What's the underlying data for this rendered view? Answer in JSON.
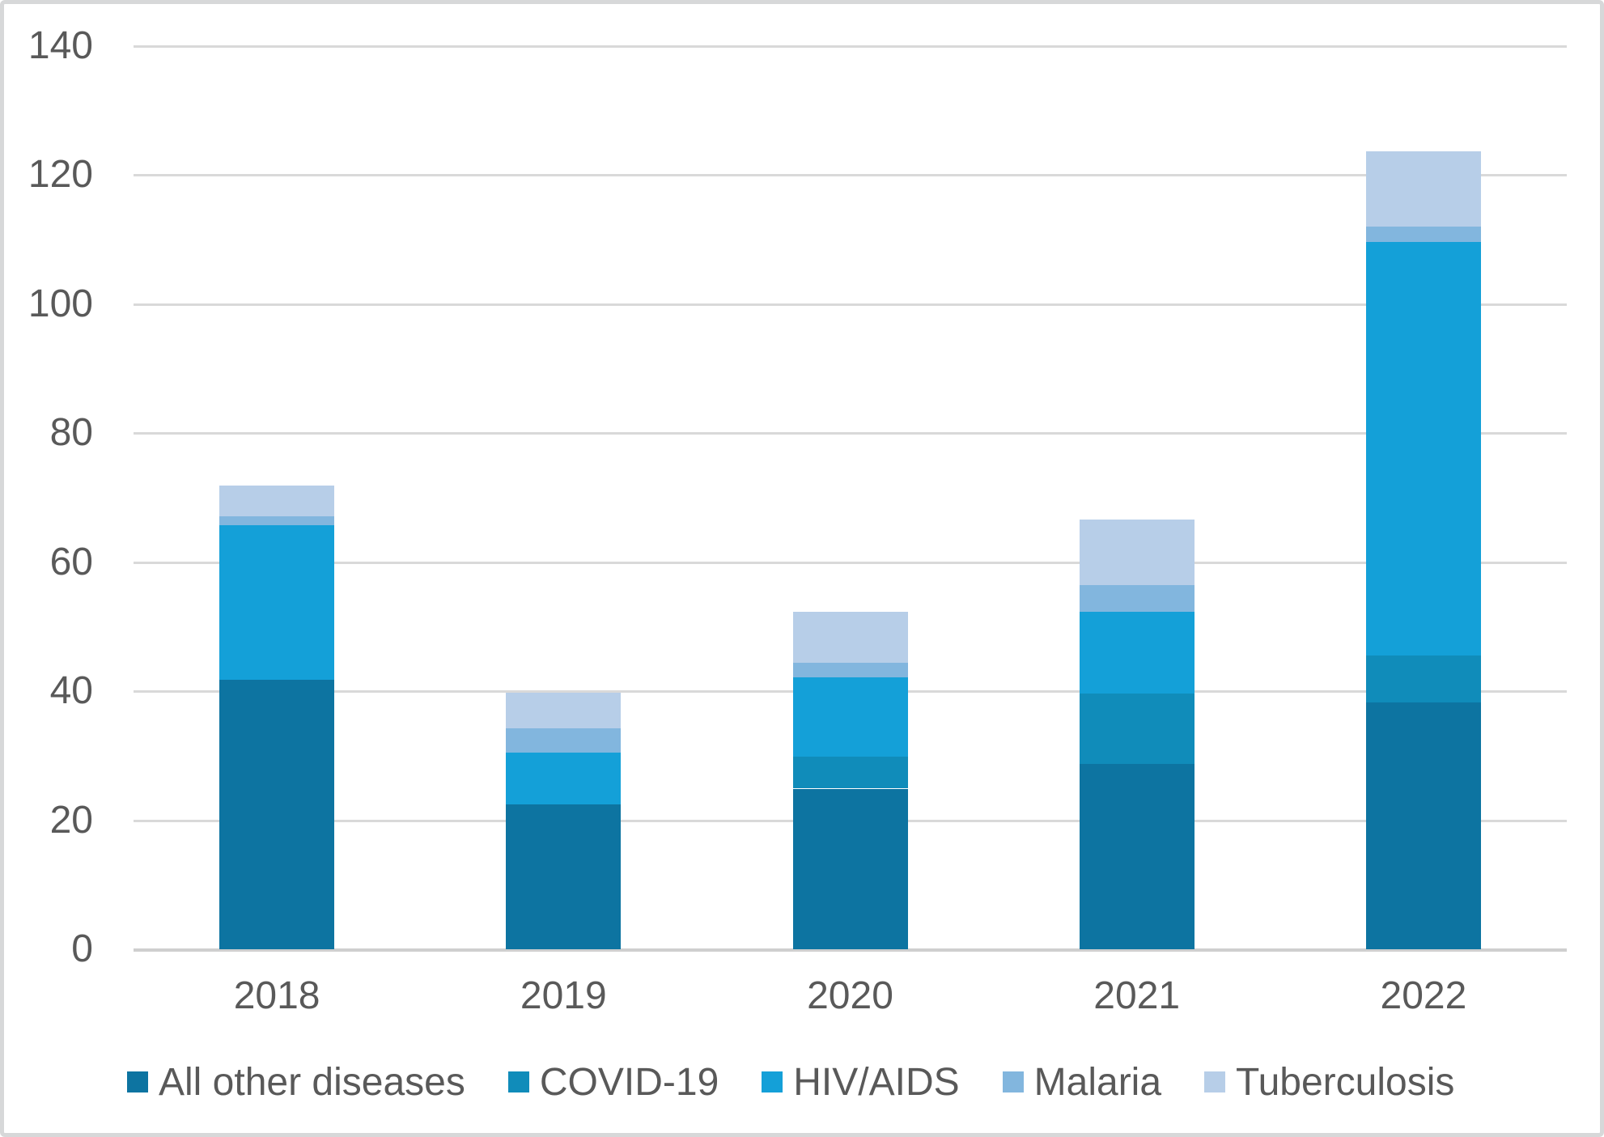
{
  "chart_data": {
    "type": "bar",
    "stacked": true,
    "title": "",
    "xlabel": "",
    "ylabel": "",
    "categories": [
      "2018",
      "2019",
      "2020",
      "2021",
      "2022"
    ],
    "series": [
      {
        "name": "All other diseases",
        "color": "#0d74a1",
        "values": [
          41.8,
          22.5,
          24.9,
          28.7,
          38.3
        ]
      },
      {
        "name": "COVID-19",
        "color": "#108cba",
        "values": [
          0,
          0,
          4.9,
          11.0,
          7.2
        ]
      },
      {
        "name": "HIV/AIDS",
        "color": "#14a0d8",
        "values": [
          23.9,
          8.0,
          12.4,
          12.6,
          64.2
        ]
      },
      {
        "name": "Malaria",
        "color": "#82b6de",
        "values": [
          1.4,
          3.8,
          2.2,
          4.2,
          2.3
        ]
      },
      {
        "name": "Tuberculosis",
        "color": "#b7cee8",
        "values": [
          4.8,
          5.5,
          7.9,
          10.1,
          11.7
        ]
      }
    ],
    "totals": [
      71.9,
      39.8,
      52.3,
      66.6,
      123.7
    ],
    "ylim": [
      0,
      140
    ],
    "yticks": [
      0,
      20,
      40,
      60,
      80,
      100,
      120,
      140
    ],
    "grid": true,
    "legend_position": "bottom"
  },
  "colors": {
    "background": "#ffffff",
    "frame_border": "#d7d8d9",
    "gridline": "#d9d9d9",
    "axis_baseline": "#cfcfcf",
    "tick_text": "#595959",
    "legend_text": "#595959"
  }
}
